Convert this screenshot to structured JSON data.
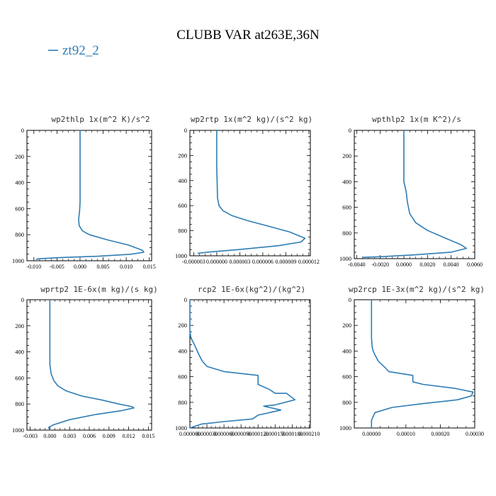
{
  "figure": {
    "title": "CLUBB VAR at263E,36N",
    "legend_label": "zt92_2",
    "line_color": "#2e7db5"
  },
  "chart_data": [
    {
      "type": "line",
      "title": "wp2thlp  1x(m^2 K)/s^2",
      "xticks": [
        "-0.010",
        "-0.005",
        "0.000",
        "0.005",
        "0.010",
        "0.015"
      ],
      "xlim": [
        -0.0115,
        0.0155
      ],
      "yticks": [
        "0",
        "200",
        "400",
        "600",
        "800",
        "1000"
      ],
      "ylim": [
        0,
        1000
      ],
      "series": [
        {
          "name": "zt92_2",
          "x": [
            0.0,
            0.0,
            0.0,
            -0.0001,
            -0.0003,
            -0.0002,
            0.0005,
            0.002,
            0.006,
            0.0105,
            0.0135,
            0.0138,
            0.011,
            0.004,
            -0.004,
            -0.009,
            -0.0095
          ],
          "y": [
            0,
            300,
            550,
            620,
            680,
            730,
            770,
            800,
            840,
            880,
            920,
            935,
            950,
            965,
            975,
            985,
            990
          ]
        }
      ]
    },
    {
      "type": "line",
      "title": "wp2rtp  1x(m^2 kg)/(s^2 kg)",
      "xticks": [
        "-0.000003",
        "0.000000",
        "0.000003",
        "0.000006",
        "0.000009",
        "0.000012"
      ],
      "xlim": [
        -3.5e-06,
        1.22e-05
      ],
      "yticks": [
        "0",
        "200",
        "400",
        "600",
        "800",
        "1000"
      ],
      "ylim": [
        0,
        1000
      ],
      "series": [
        {
          "name": "zt92_2",
          "x": [
            0.0,
            0.0,
            1e-07,
            3e-07,
            8e-07,
            2e-06,
            4e-06,
            6.5e-06,
            9.5e-06,
            1.15e-05,
            1.1e-05,
            8e-06,
            3e-06,
            -1e-06,
            -2.5e-06
          ],
          "y": [
            0,
            300,
            540,
            600,
            640,
            680,
            720,
            760,
            810,
            860,
            890,
            920,
            950,
            970,
            980
          ]
        }
      ]
    },
    {
      "type": "line",
      "title": "wpthlp2  1x(m K^2)/s",
      "xticks": [
        "-0.0040",
        "-0.0020",
        "0.0000",
        "0.0020",
        "0.0040",
        "0.0060"
      ],
      "xlim": [
        -0.0042,
        0.006
      ],
      "yticks": [
        "0",
        "200",
        "400",
        "600",
        "800",
        "1000"
      ],
      "ylim": [
        0,
        1000
      ],
      "series": [
        {
          "name": "zt92_2",
          "x": [
            0.0,
            0.0,
            0.0002,
            0.0003,
            0.0005,
            0.001,
            0.002,
            0.0035,
            0.0048,
            0.0053,
            0.004,
            0.001,
            -0.002,
            -0.0035
          ],
          "y": [
            0,
            400,
            480,
            560,
            650,
            720,
            780,
            840,
            890,
            920,
            950,
            970,
            985,
            990
          ]
        }
      ]
    },
    {
      "type": "line",
      "title": "wprtp2  1E-6x(m kg)/(s kg)",
      "xticks": [
        "-0.003",
        "0.000",
        "0.003",
        "0.006",
        "0.009",
        "0.012",
        "0.015"
      ],
      "xlim": [
        -0.0035,
        0.0155
      ],
      "yticks": [
        "0",
        "200",
        "400",
        "600",
        "800",
        "1000"
      ],
      "ylim": [
        0,
        1000
      ],
      "series": [
        {
          "name": "zt92_2",
          "x": [
            0.0,
            0.0,
            0.0002,
            0.0006,
            0.0012,
            0.0025,
            0.005,
            0.008,
            0.0105,
            0.0125,
            0.0128,
            0.011,
            0.007,
            0.003,
            0.0005,
            -0.0002,
            0.0
          ],
          "y": [
            0,
            500,
            570,
            620,
            660,
            700,
            740,
            770,
            800,
            820,
            830,
            850,
            880,
            920,
            960,
            980,
            1000
          ]
        }
      ]
    },
    {
      "type": "line",
      "title": "rcp2  1E-6x(kg^2)/(kg^2)",
      "xticks": [
        "0.000000",
        "0.000030",
        "0.000060",
        "0.000090",
        "0.000120",
        "0.000150",
        "0.000180",
        "0.000210"
      ],
      "xlim": [
        0,
        0.000212
      ],
      "yticks": [
        "0",
        "200",
        "400",
        "600",
        "800",
        "1000"
      ],
      "ylim": [
        0,
        1000
      ],
      "series": [
        {
          "name": "zt92_2",
          "x": [
            0.0,
            0.0,
            2e-06,
            8e-06,
            1.5e-05,
            2.2e-05,
            3e-05,
            6e-05,
            0.00012,
            0.00012,
            0.00014,
            0.00015,
            0.00017,
            0.000185,
            0.00015,
            0.00013,
            0.00016,
            0.00012,
            0.00011,
            6e-05,
            2e-05,
            0.0
          ],
          "y": [
            0,
            250,
            300,
            350,
            420,
            480,
            520,
            560,
            590,
            660,
            700,
            730,
            730,
            780,
            820,
            830,
            860,
            900,
            930,
            950,
            970,
            1000
          ]
        }
      ]
    },
    {
      "type": "line",
      "title": "wp2rcp  1E-3x(m^2 kg)/(s^2 kg)",
      "xticks": [
        "0.00000",
        "0.00010",
        "0.00020",
        "0.00030"
      ],
      "xlim": [
        -5e-05,
        0.0003
      ],
      "yticks": [
        "0",
        "200",
        "400",
        "600",
        "800",
        "1000"
      ],
      "ylim": [
        0,
        1000
      ],
      "series": [
        {
          "name": "zt92_2",
          "x": [
            0.0,
            0.0,
            2e-06,
            5e-06,
            1e-05,
            2e-05,
            4e-05,
            5e-05,
            0.00012,
            0.00012,
            0.00015,
            0.00024,
            0.000295,
            0.00029,
            0.00025,
            0.00015,
            6e-05,
            1e-05,
            0.0,
            0.0
          ],
          "y": [
            0,
            300,
            370,
            400,
            430,
            480,
            530,
            560,
            590,
            640,
            660,
            690,
            720,
            750,
            780,
            810,
            840,
            880,
            940,
            1000
          ]
        }
      ]
    }
  ]
}
